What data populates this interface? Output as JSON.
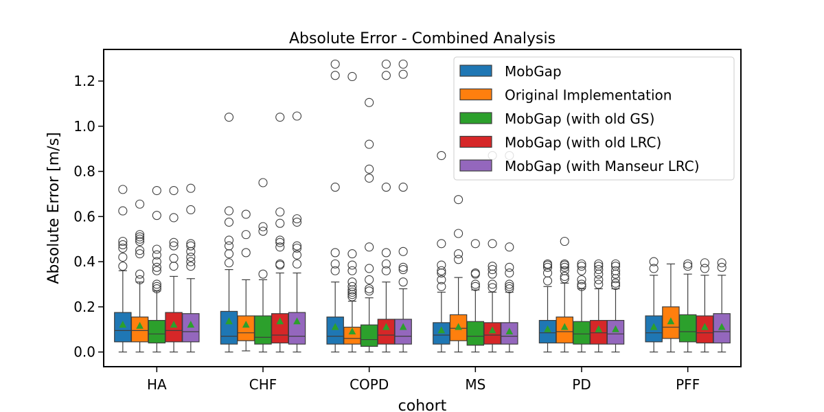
{
  "chart_data": {
    "type": "box",
    "title": "Absolute Error - Combined Analysis",
    "xlabel": "cohort",
    "ylabel": "Absolute Error [m/s]",
    "ylim": [
      -0.065,
      1.34
    ],
    "yticks": [
      0.0,
      0.2,
      0.4,
      0.6,
      0.8,
      1.0,
      1.2
    ],
    "ytick_labels": [
      "0.0",
      "0.2",
      "0.4",
      "0.6",
      "0.8",
      "1.0",
      "1.2"
    ],
    "categories": [
      "HA",
      "CHF",
      "COPD",
      "MS",
      "PD",
      "PFF"
    ],
    "legend_position": "top-right",
    "series": [
      {
        "name": "MobGap",
        "color": "#1f77b4",
        "boxes": [
          {
            "min": 0.0,
            "q1": 0.045,
            "median": 0.095,
            "q3": 0.175,
            "max": 0.36,
            "mean": 0.12,
            "outliers": [
              0.38,
              0.42,
              0.46,
              0.475,
              0.49,
              0.625,
              0.72
            ]
          },
          {
            "min": 0.0,
            "q1": 0.035,
            "median": 0.07,
            "q3": 0.18,
            "max": 0.365,
            "mean": 0.135,
            "outliers": [
              0.395,
              0.435,
              0.47,
              0.495,
              0.575,
              0.625,
              1.04
            ]
          },
          {
            "min": 0.0,
            "q1": 0.035,
            "median": 0.07,
            "q3": 0.155,
            "max": 0.31,
            "mean": 0.11,
            "outliers": [
              0.36,
              0.39,
              0.44,
              0.73,
              1.225,
              1.275
            ]
          },
          {
            "min": 0.0,
            "q1": 0.035,
            "median": 0.075,
            "q3": 0.13,
            "max": 0.265,
            "mean": 0.095,
            "outliers": [
              0.29,
              0.32,
              0.35,
              0.36,
              0.385,
              0.48,
              0.87
            ]
          },
          {
            "min": 0.0,
            "q1": 0.04,
            "median": 0.085,
            "q3": 0.14,
            "max": 0.29,
            "mean": 0.1,
            "outliers": [
              0.315,
              0.35,
              0.375,
              0.385,
              0.39
            ]
          },
          {
            "min": 0.0,
            "q1": 0.045,
            "median": 0.085,
            "q3": 0.16,
            "max": 0.34,
            "mean": 0.11,
            "outliers": [
              0.37,
              0.4
            ]
          }
        ]
      },
      {
        "name": "Original Implementation",
        "color": "#ff7f0e",
        "boxes": [
          {
            "min": 0.0,
            "q1": 0.045,
            "median": 0.095,
            "q3": 0.155,
            "max": 0.31,
            "mean": 0.115,
            "outliers": [
              0.32,
              0.345,
              0.435,
              0.45,
              0.49,
              0.5,
              0.51,
              0.52,
              0.655
            ]
          },
          {
            "min": 0.005,
            "q1": 0.05,
            "median": 0.085,
            "q3": 0.16,
            "max": 0.32,
            "mean": 0.12,
            "outliers": [
              0.44,
              0.52,
              0.61
            ]
          },
          {
            "min": 0.0,
            "q1": 0.035,
            "median": 0.06,
            "q3": 0.11,
            "max": 0.225,
            "mean": 0.09,
            "outliers": [
              0.245,
              0.255,
              0.265,
              0.275,
              0.29,
              0.31,
              0.36,
              0.385,
              0.435,
              1.22
            ]
          },
          {
            "min": 0.0,
            "q1": 0.05,
            "median": 0.105,
            "q3": 0.165,
            "max": 0.33,
            "mean": 0.11,
            "outliers": [
              0.41,
              0.435,
              0.525,
              0.675
            ]
          },
          {
            "min": 0.0,
            "q1": 0.04,
            "median": 0.09,
            "q3": 0.155,
            "max": 0.305,
            "mean": 0.11,
            "outliers": [
              0.325,
              0.335,
              0.36,
              0.375,
              0.385,
              0.39,
              0.49
            ]
          },
          {
            "min": 0.0,
            "q1": 0.06,
            "median": 0.11,
            "q3": 0.2,
            "max": 0.39,
            "mean": 0.135,
            "outliers": []
          }
        ]
      },
      {
        "name": "MobGap (with old GS)",
        "color": "#2ca02c",
        "boxes": [
          {
            "min": 0.0,
            "q1": 0.04,
            "median": 0.08,
            "q3": 0.14,
            "max": 0.27,
            "mean": 0.115,
            "outliers": [
              0.28,
              0.29,
              0.3,
              0.36,
              0.375,
              0.4,
              0.43,
              0.455,
              0.605,
              0.715
            ]
          },
          {
            "min": 0.0,
            "q1": 0.035,
            "median": 0.065,
            "q3": 0.16,
            "max": 0.32,
            "mean": 0.11,
            "outliers": [
              0.345,
              0.535,
              0.555,
              0.75
            ]
          },
          {
            "min": 0.0,
            "q1": 0.025,
            "median": 0.055,
            "q3": 0.12,
            "max": 0.24,
            "mean": 0.09,
            "outliers": [
              0.27,
              0.28,
              0.32,
              0.37,
              0.465,
              0.77,
              0.81,
              0.92,
              1.105
            ]
          },
          {
            "min": 0.0,
            "q1": 0.03,
            "median": 0.07,
            "q3": 0.135,
            "max": 0.275,
            "mean": 0.1,
            "outliers": [
              0.29,
              0.3,
              0.345,
              0.35,
              0.48,
              0.82
            ]
          },
          {
            "min": 0.0,
            "q1": 0.035,
            "median": 0.08,
            "q3": 0.135,
            "max": 0.28,
            "mean": 0.1,
            "outliers": [
              0.29,
              0.3,
              0.32,
              0.36,
              0.38,
              0.39
            ]
          },
          {
            "min": 0.0,
            "q1": 0.045,
            "median": 0.09,
            "q3": 0.165,
            "max": 0.345,
            "mean": 0.11,
            "outliers": [
              0.38,
              0.39
            ]
          }
        ]
      },
      {
        "name": "MobGap (with old LRC)",
        "color": "#d62728",
        "boxes": [
          {
            "min": 0.0,
            "q1": 0.045,
            "median": 0.095,
            "q3": 0.175,
            "max": 0.335,
            "mean": 0.12,
            "outliers": [
              0.38,
              0.415,
              0.47,
              0.485,
              0.595,
              0.715
            ]
          },
          {
            "min": 0.0,
            "q1": 0.04,
            "median": 0.075,
            "q3": 0.17,
            "max": 0.35,
            "mean": 0.135,
            "outliers": [
              0.385,
              0.39,
              0.465,
              0.485,
              0.495,
              0.57,
              0.62,
              1.04
            ]
          },
          {
            "min": 0.0,
            "q1": 0.035,
            "median": 0.075,
            "q3": 0.145,
            "max": 0.31,
            "mean": 0.11,
            "outliers": [
              0.36,
              0.39,
              0.44,
              0.73,
              1.225,
              1.275
            ]
          },
          {
            "min": 0.0,
            "q1": 0.035,
            "median": 0.075,
            "q3": 0.13,
            "max": 0.265,
            "mean": 0.095,
            "outliers": [
              0.285,
              0.3,
              0.345,
              0.365,
              0.38,
              0.48,
              0.87
            ]
          },
          {
            "min": 0.0,
            "q1": 0.035,
            "median": 0.085,
            "q3": 0.14,
            "max": 0.28,
            "mean": 0.1,
            "outliers": [
              0.3,
              0.32,
              0.345,
              0.365,
              0.38,
              0.39
            ]
          },
          {
            "min": 0.0,
            "q1": 0.04,
            "median": 0.085,
            "q3": 0.16,
            "max": 0.34,
            "mean": 0.11,
            "outliers": [
              0.37,
              0.395
            ]
          }
        ]
      },
      {
        "name": "MobGap (with Manseur LRC)",
        "color": "#9467bd",
        "boxes": [
          {
            "min": 0.0,
            "q1": 0.045,
            "median": 0.09,
            "q3": 0.17,
            "max": 0.325,
            "mean": 0.12,
            "outliers": [
              0.38,
              0.4,
              0.42,
              0.445,
              0.47,
              0.48,
              0.63,
              0.725
            ]
          },
          {
            "min": 0.0,
            "q1": 0.035,
            "median": 0.07,
            "q3": 0.175,
            "max": 0.35,
            "mean": 0.135,
            "outliers": [
              0.39,
              0.43,
              0.46,
              0.47,
              0.575,
              0.59,
              1.045
            ]
          },
          {
            "min": 0.0,
            "q1": 0.035,
            "median": 0.07,
            "q3": 0.145,
            "max": 0.28,
            "mean": 0.11,
            "outliers": [
              0.31,
              0.365,
              0.375,
              0.445,
              0.73,
              1.23,
              1.275
            ]
          },
          {
            "min": 0.0,
            "q1": 0.035,
            "median": 0.07,
            "q3": 0.13,
            "max": 0.265,
            "mean": 0.09,
            "outliers": [
              0.28,
              0.29,
              0.3,
              0.35,
              0.375,
              0.465,
              0.87
            ]
          },
          {
            "min": 0.0,
            "q1": 0.035,
            "median": 0.08,
            "q3": 0.14,
            "max": 0.28,
            "mean": 0.1,
            "outliers": [
              0.295,
              0.305,
              0.325,
              0.345,
              0.36,
              0.38,
              0.39
            ]
          },
          {
            "min": 0.0,
            "q1": 0.04,
            "median": 0.09,
            "q3": 0.17,
            "max": 0.34,
            "mean": 0.11,
            "outliers": [
              0.375,
              0.395
            ]
          }
        ]
      }
    ]
  }
}
